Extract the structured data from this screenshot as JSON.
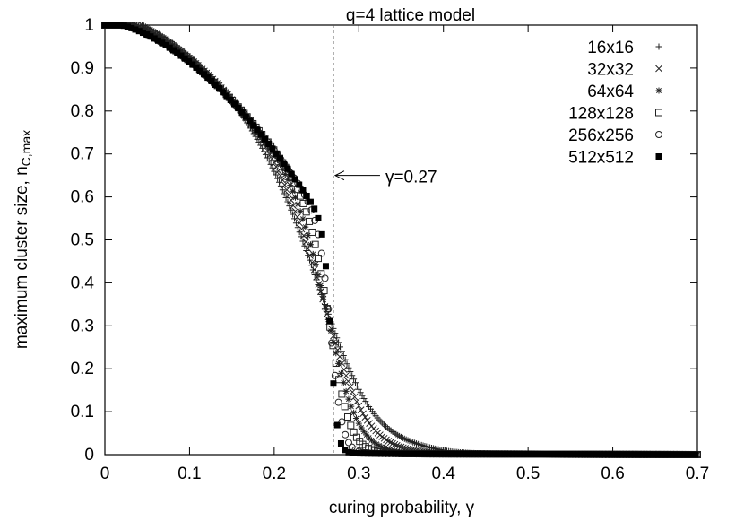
{
  "chart_data": {
    "type": "scatter",
    "title": "q=4 lattice model",
    "xlabel": "curing probability, γ",
    "ylabel_main": "maximum cluster size, n",
    "ylabel_sub": "C,max",
    "xlim": [
      0,
      0.7
    ],
    "ylim": [
      0,
      1
    ],
    "xticks": [
      "0",
      "0.1",
      "0.2",
      "0.3",
      "0.4",
      "0.5",
      "0.6",
      "0.7"
    ],
    "yticks": [
      "0",
      "0.1",
      "0.2",
      "0.3",
      "0.4",
      "0.5",
      "0.6",
      "0.7",
      "0.8",
      "0.9",
      "1"
    ],
    "grid": false,
    "legend_position": "top-right",
    "annotation": {
      "text": "γ=0.27",
      "critical_x": 0.27,
      "arrow_y": 0.65
    },
    "series": [
      {
        "name": "16x16",
        "marker": "plus",
        "gc": 0.275,
        "width": 0.033,
        "tail_x": 0.39,
        "tail_y": 0.02,
        "step": 0.002
      },
      {
        "name": "32x32",
        "marker": "cross",
        "gc": 0.272,
        "width": 0.025,
        "tail_x": 0.35,
        "tail_y": 0.012,
        "step": 0.0025
      },
      {
        "name": "64x64",
        "marker": "asterisk",
        "gc": 0.27,
        "width": 0.018,
        "tail_x": 0.32,
        "tail_y": 0.008,
        "step": 0.003
      },
      {
        "name": "128x128",
        "marker": "open-square",
        "gc": 0.269,
        "width": 0.012,
        "tail_x": 0.3,
        "tail_y": 0.005,
        "step": 0.0035
      },
      {
        "name": "256x256",
        "marker": "open-circle",
        "gc": 0.268,
        "width": 0.007,
        "tail_x": 0.29,
        "tail_y": 0.003,
        "step": 0.004
      },
      {
        "name": "512x512",
        "marker": "filled-square",
        "gc": 0.267,
        "width": 0.004,
        "tail_x": 0.285,
        "tail_y": 0.002,
        "step": 0.0045
      }
    ]
  }
}
